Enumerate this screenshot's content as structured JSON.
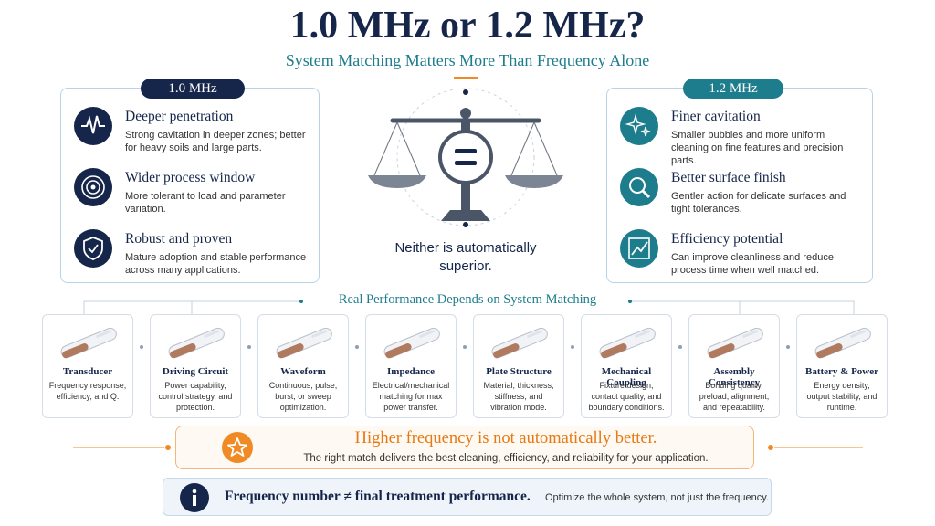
{
  "header": {
    "title": "1.0 MHz or 1.2 MHz?",
    "subtitle": "System Matching Matters More Than Frequency Alone"
  },
  "left_panel": {
    "label": "1.0 MHz",
    "items": [
      {
        "title": "Deeper penetration",
        "text": "Strong cavitation in deeper zones; better for heavy soils and large parts."
      },
      {
        "title": "Wider process window",
        "text": "More tolerant to load and parameter variation."
      },
      {
        "title": "Robust and proven",
        "text": "Mature adoption and stable performance across many applications."
      }
    ]
  },
  "right_panel": {
    "label": "1.2 MHz",
    "items": [
      {
        "title": "Finer cavitation",
        "text": "Smaller bubbles and more uniform cleaning on fine features and precision parts."
      },
      {
        "title": "Better surface finish",
        "text": "Gentler action for delicate surfaces and tight tolerances."
      },
      {
        "title": "Efficiency potential",
        "text": "Can improve cleanliness and reduce process time when well matched."
      }
    ]
  },
  "center": {
    "text": "Neither is automatically superior."
  },
  "factors": {
    "heading": "Real Performance Depends on System Matching",
    "items": [
      {
        "title": "Transducer",
        "text": "Frequency response, efficiency, and Q."
      },
      {
        "title": "Driving Circuit",
        "text": "Power capability, control strategy, and protection."
      },
      {
        "title": "Waveform",
        "text": "Continuous, pulse, burst, or sweep optimization."
      },
      {
        "title": "Impedance",
        "text": "Electrical/mechanical matching for max power transfer."
      },
      {
        "title": "Plate Structure",
        "text": "Material, thickness, stiffness, and vibration mode."
      },
      {
        "title": "Mechanical Coupling",
        "text": "Fixture design, contact quality, and boundary conditions."
      },
      {
        "title": "Assembly Consistency",
        "text": "Bonding quality, preload, alignment, and repeatability."
      },
      {
        "title": "Battery & Power",
        "text": "Energy density, output stability, and runtime."
      }
    ]
  },
  "callout": {
    "title": "Higher frequency is not automatically better.",
    "text": "The right match delivers the best cleaning, efficiency, and reliability for your application."
  },
  "info_bar": {
    "main": "Frequency number ≠ final treatment performance.",
    "note": "Optimize the whole system, not just the frequency."
  }
}
